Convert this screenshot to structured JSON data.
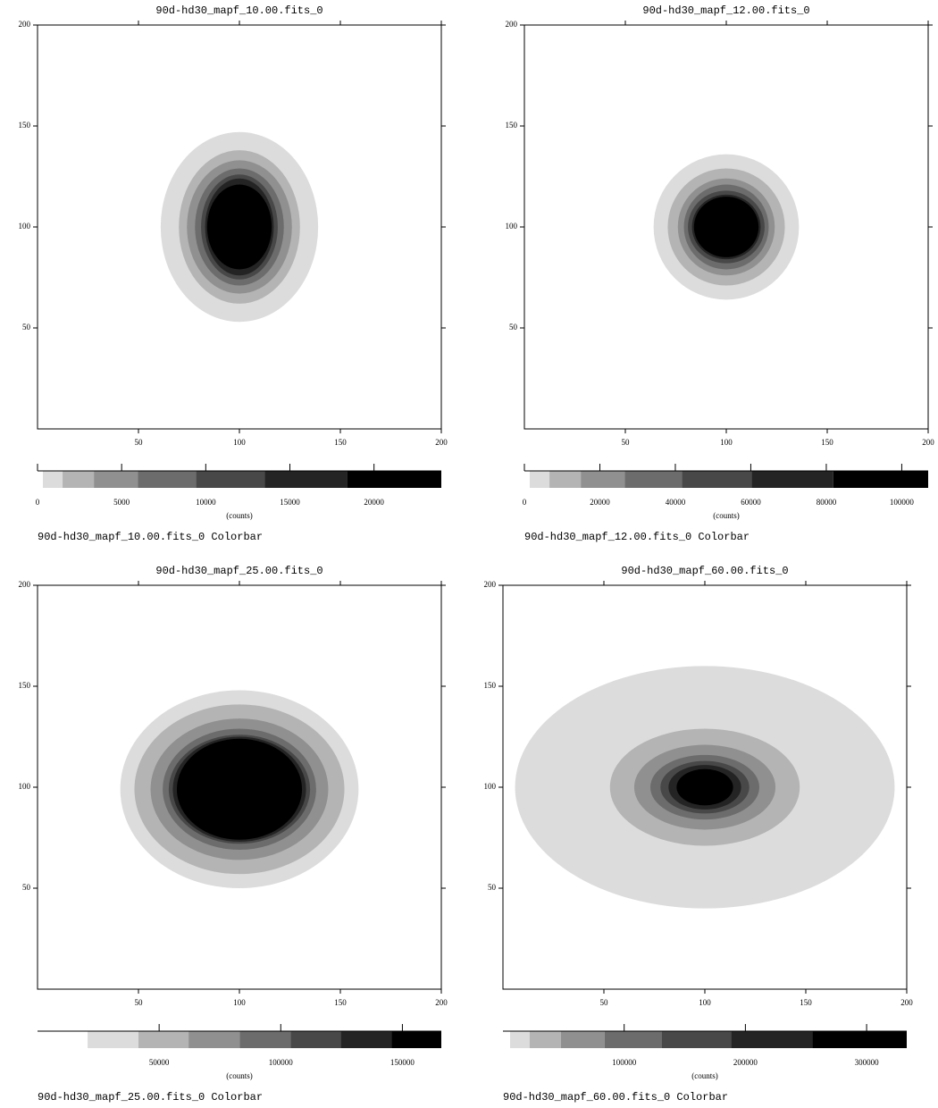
{
  "chart_data": [
    {
      "type": "image",
      "title": "90d-hd30_mapf_10.00.fits_0",
      "xlim": [
        0,
        200
      ],
      "ylim": [
        0,
        200
      ],
      "xticks": [
        50,
        100,
        150,
        200
      ],
      "yticks": [
        50,
        100,
        150,
        200
      ],
      "center": [
        100,
        100
      ],
      "contours": [
        {
          "color": "#dcdcdc",
          "rx": 39,
          "ry": 47
        },
        {
          "color": "#b4b4b4",
          "rx": 30,
          "ry": 38
        },
        {
          "color": "#909090",
          "rx": 26,
          "ry": 33
        },
        {
          "color": "#6c6c6c",
          "rx": 22,
          "ry": 29
        },
        {
          "color": "#484848",
          "rx": 19,
          "ry": 26
        },
        {
          "color": "#242424",
          "rx": 17,
          "ry": 24
        },
        {
          "color": "#000000",
          "rx": 16,
          "ry": 21
        }
      ],
      "colorbar": {
        "title": "90d-hd30_mapf_10.00.fits_0 Colorbar",
        "label": "(counts)",
        "lim": [
          0,
          24000
        ],
        "ticks": [
          0,
          5000,
          10000,
          15000,
          20000
        ],
        "bins": [
          0,
          319,
          1489,
          3351,
          5957,
          9415,
          13511,
          18404,
          24000
        ],
        "colors": [
          "#ffffff",
          "#dcdcdc",
          "#b4b4b4",
          "#909090",
          "#6c6c6c",
          "#484848",
          "#242424",
          "#000000"
        ]
      }
    },
    {
      "type": "image",
      "title": "90d-hd30_mapf_12.00.fits_0",
      "xlim": [
        0,
        200
      ],
      "ylim": [
        0,
        200
      ],
      "xticks": [
        50,
        100,
        150,
        200
      ],
      "yticks": [
        50,
        100,
        150,
        200
      ],
      "center": [
        100,
        100
      ],
      "contours": [
        {
          "color": "#dcdcdc",
          "rx": 36,
          "ry": 36
        },
        {
          "color": "#b4b4b4",
          "rx": 29,
          "ry": 29
        },
        {
          "color": "#909090",
          "rx": 24,
          "ry": 24
        },
        {
          "color": "#6c6c6c",
          "rx": 21,
          "ry": 21
        },
        {
          "color": "#484848",
          "rx": 19,
          "ry": 18
        },
        {
          "color": "#242424",
          "rx": 17,
          "ry": 16
        },
        {
          "color": "#000000",
          "rx": 16,
          "ry": 15
        }
      ],
      "colorbar": {
        "title": "90d-hd30_mapf_12.00.fits_0 Colorbar",
        "label": "(counts)",
        "lim": [
          0,
          107000
        ],
        "ticks": [
          0,
          20000,
          40000,
          60000,
          80000,
          100000
        ],
        "bins": [
          0,
          1423,
          6643,
          14945,
          26572,
          41755,
          60259,
          81850,
          107000
        ],
        "colors": [
          "#ffffff",
          "#dcdcdc",
          "#b4b4b4",
          "#909090",
          "#6c6c6c",
          "#484848",
          "#242424",
          "#000000"
        ]
      }
    },
    {
      "type": "image",
      "title": "90d-hd30_mapf_25.00.fits_0",
      "xlim": [
        0,
        200
      ],
      "ylim": [
        0,
        200
      ],
      "xticks": [
        50,
        100,
        150,
        200
      ],
      "yticks": [
        50,
        100,
        150,
        200
      ],
      "center": [
        100,
        99
      ],
      "contours": [
        {
          "color": "#dcdcdc",
          "rx": 59,
          "ry": 49
        },
        {
          "color": "#b4b4b4",
          "rx": 52,
          "ry": 42
        },
        {
          "color": "#909090",
          "rx": 44,
          "ry": 35
        },
        {
          "color": "#6c6c6c",
          "rx": 38,
          "ry": 30
        },
        {
          "color": "#484848",
          "rx": 35,
          "ry": 27
        },
        {
          "color": "#242424",
          "rx": 33,
          "ry": 26
        },
        {
          "color": "#000000",
          "rx": 31,
          "ry": 25
        }
      ],
      "colorbar": {
        "title": "90d-hd30_mapf_25.00.fits_0 Colorbar",
        "label": "(counts)",
        "lim": [
          0,
          166000
        ],
        "ticks": [
          50000,
          100000,
          150000
        ],
        "bins": [
          0,
          20600,
          41500,
          62100,
          83100,
          104000,
          124600,
          145600,
          166000
        ],
        "colors": [
          "#ffffff",
          "#dcdcdc",
          "#b4b4b4",
          "#909090",
          "#6c6c6c",
          "#484848",
          "#242424",
          "#000000"
        ]
      }
    },
    {
      "type": "image",
      "title": "90d-hd30_mapf_60.00.fits_0",
      "xlim": [
        0,
        200
      ],
      "ylim": [
        0,
        200
      ],
      "xticks": [
        50,
        100,
        150,
        200
      ],
      "yticks": [
        50,
        100,
        150,
        200
      ],
      "center": [
        100,
        100
      ],
      "contours": [
        {
          "color": "#dcdcdc",
          "rx": 94,
          "ry": 60
        },
        {
          "color": "#b4b4b4",
          "rx": 47,
          "ry": 29
        },
        {
          "color": "#909090",
          "rx": 35,
          "ry": 21
        },
        {
          "color": "#6c6c6c",
          "rx": 27,
          "ry": 16
        },
        {
          "color": "#484848",
          "rx": 22,
          "ry": 13
        },
        {
          "color": "#242424",
          "rx": 18,
          "ry": 11
        },
        {
          "color": "#000000",
          "rx": 14,
          "ry": 9
        }
      ],
      "colorbar": {
        "title": "90d-hd30_mapf_60.00.fits_0 Colorbar",
        "label": "(counts)",
        "lim": [
          0,
          333100
        ],
        "ticks": [
          100000,
          200000,
          300000
        ],
        "bins": [
          0,
          5900,
          22100,
          47800,
          83800,
          130900,
          188200,
          255100,
          333100
        ],
        "colors": [
          "#ffffff",
          "#dcdcdc",
          "#b4b4b4",
          "#909090",
          "#6c6c6c",
          "#484848",
          "#242424",
          "#000000"
        ]
      }
    }
  ]
}
